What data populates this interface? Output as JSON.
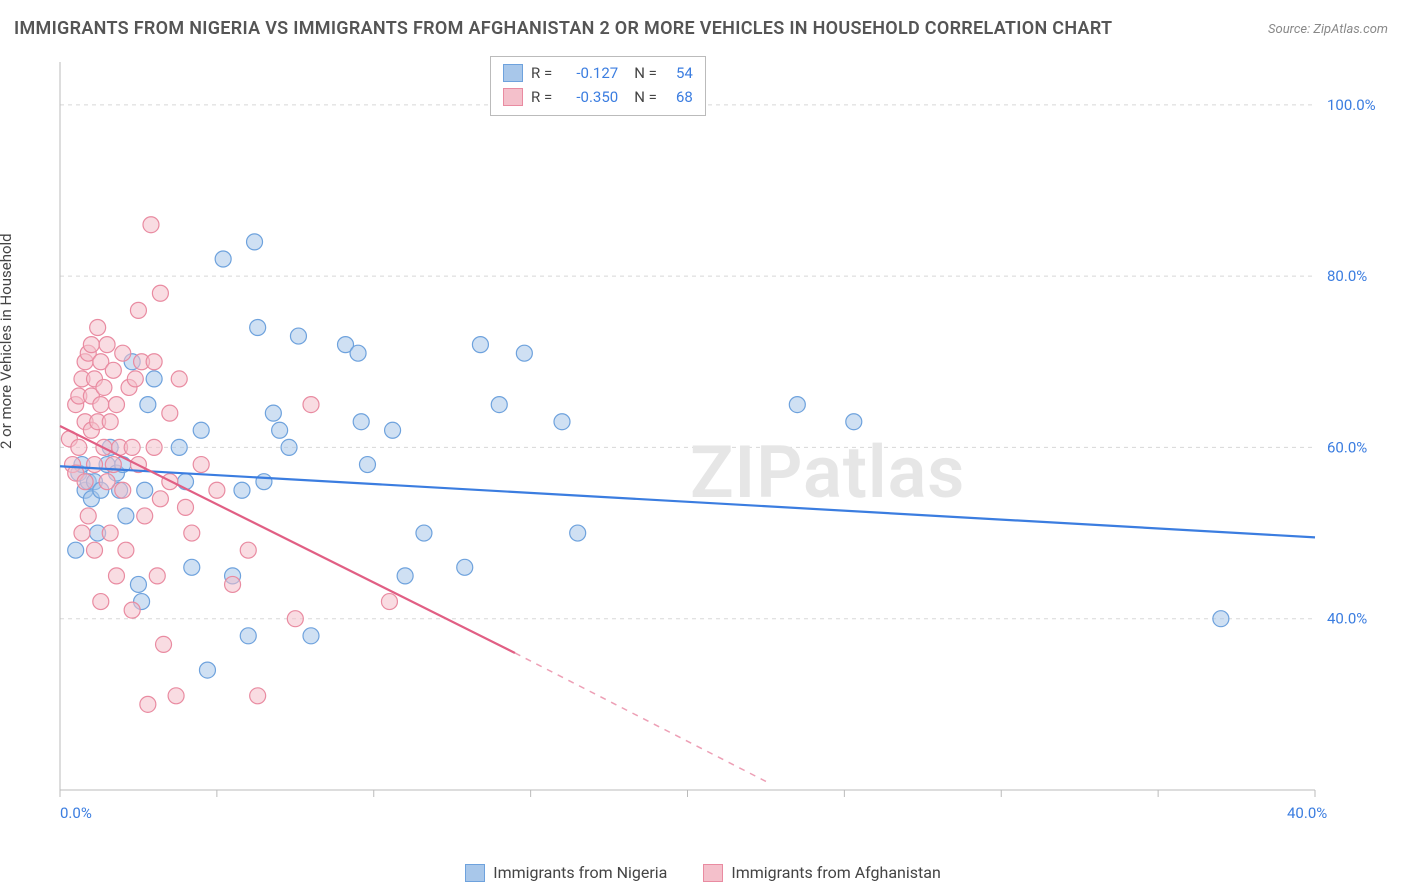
{
  "title": "IMMIGRANTS FROM NIGERIA VS IMMIGRANTS FROM AFGHANISTAN 2 OR MORE VEHICLES IN HOUSEHOLD CORRELATION CHART",
  "source": "Source: ZipAtlas.com",
  "watermark": "ZIPatlas",
  "y_axis_label": "2 or more Vehicles in Household",
  "chart": {
    "type": "scatter",
    "xlim": [
      0,
      40
    ],
    "ylim": [
      20,
      105
    ],
    "y_ticks": [
      40,
      60,
      80,
      100
    ],
    "y_tick_labels": [
      "40.0%",
      "60.0%",
      "80.0%",
      "100.0%"
    ],
    "x_ticks": [
      0,
      5,
      10,
      15,
      20,
      25,
      30,
      35,
      40
    ],
    "x_tick_labels": [
      "0.0%",
      "",
      "",
      "",
      "",
      "",
      "",
      "",
      "40.0%"
    ],
    "grid_color": "#d8d8d8",
    "axis_color": "#bbbbbb",
    "background_color": "#ffffff",
    "marker_radius": 8,
    "marker_stroke_width": 1.2,
    "line_width": 2.2,
    "series": [
      {
        "name": "Immigrants from Nigeria",
        "fill": "#a8c7ea",
        "stroke": "#6ea2dd",
        "fill_opacity": 0.55,
        "line_color": "#3b7de0",
        "r_value": "-0.127",
        "n_value": "54",
        "trend": {
          "x1": 0,
          "y1": 57.8,
          "x2": 40,
          "y2": 49.5
        },
        "points": [
          [
            0.5,
            48
          ],
          [
            0.6,
            57
          ],
          [
            0.7,
            58
          ],
          [
            0.8,
            55
          ],
          [
            0.9,
            56
          ],
          [
            1.0,
            54
          ],
          [
            1.1,
            56
          ],
          [
            1.2,
            50
          ],
          [
            1.3,
            55
          ],
          [
            1.5,
            58
          ],
          [
            1.6,
            60
          ],
          [
            1.8,
            57
          ],
          [
            1.9,
            55
          ],
          [
            2.0,
            58
          ],
          [
            2.1,
            52
          ],
          [
            2.3,
            70
          ],
          [
            2.5,
            44
          ],
          [
            2.6,
            42
          ],
          [
            2.7,
            55
          ],
          [
            2.8,
            65
          ],
          [
            3.0,
            68
          ],
          [
            3.8,
            60
          ],
          [
            4.0,
            56
          ],
          [
            4.2,
            46
          ],
          [
            4.5,
            62
          ],
          [
            4.7,
            34
          ],
          [
            5.2,
            82
          ],
          [
            5.5,
            45
          ],
          [
            5.8,
            55
          ],
          [
            6.0,
            38
          ],
          [
            6.2,
            84
          ],
          [
            6.3,
            74
          ],
          [
            6.5,
            56
          ],
          [
            6.8,
            64
          ],
          [
            7.0,
            62
          ],
          [
            7.3,
            60
          ],
          [
            7.6,
            73
          ],
          [
            8.0,
            38
          ],
          [
            9.1,
            72
          ],
          [
            9.5,
            71
          ],
          [
            9.6,
            63
          ],
          [
            9.8,
            58
          ],
          [
            10.6,
            62
          ],
          [
            11.0,
            45
          ],
          [
            11.6,
            50
          ],
          [
            12.9,
            46
          ],
          [
            13.4,
            72
          ],
          [
            14.0,
            65
          ],
          [
            14.8,
            71
          ],
          [
            16.0,
            63
          ],
          [
            16.5,
            50
          ],
          [
            23.5,
            65
          ],
          [
            25.3,
            63
          ],
          [
            37.0,
            40
          ]
        ]
      },
      {
        "name": "Immigrants from Afghanistan",
        "fill": "#f4c0cb",
        "stroke": "#e98ba1",
        "fill_opacity": 0.55,
        "line_color": "#e15f84",
        "r_value": "-0.350",
        "n_value": "68",
        "trend_solid": {
          "x1": 0,
          "y1": 62.5,
          "x2": 14.5,
          "y2": 36
        },
        "trend_dash": {
          "x1": 14.5,
          "y1": 36,
          "x2": 22.5,
          "y2": 21
        },
        "points": [
          [
            0.3,
            61
          ],
          [
            0.4,
            58
          ],
          [
            0.5,
            65
          ],
          [
            0.5,
            57
          ],
          [
            0.6,
            66
          ],
          [
            0.6,
            60
          ],
          [
            0.7,
            68
          ],
          [
            0.7,
            50
          ],
          [
            0.8,
            70
          ],
          [
            0.8,
            63
          ],
          [
            0.8,
            56
          ],
          [
            0.9,
            71
          ],
          [
            0.9,
            52
          ],
          [
            1.0,
            66
          ],
          [
            1.0,
            62
          ],
          [
            1.0,
            72
          ],
          [
            1.1,
            68
          ],
          [
            1.1,
            58
          ],
          [
            1.1,
            48
          ],
          [
            1.2,
            74
          ],
          [
            1.2,
            63
          ],
          [
            1.3,
            65
          ],
          [
            1.3,
            70
          ],
          [
            1.3,
            42
          ],
          [
            1.4,
            60
          ],
          [
            1.4,
            67
          ],
          [
            1.5,
            72
          ],
          [
            1.5,
            56
          ],
          [
            1.6,
            63
          ],
          [
            1.6,
            50
          ],
          [
            1.7,
            69
          ],
          [
            1.7,
            58
          ],
          [
            1.8,
            65
          ],
          [
            1.8,
            45
          ],
          [
            1.9,
            60
          ],
          [
            2.0,
            71
          ],
          [
            2.0,
            55
          ],
          [
            2.1,
            48
          ],
          [
            2.2,
            67
          ],
          [
            2.3,
            60
          ],
          [
            2.3,
            41
          ],
          [
            2.4,
            68
          ],
          [
            2.5,
            58
          ],
          [
            2.5,
            76
          ],
          [
            2.6,
            70
          ],
          [
            2.7,
            52
          ],
          [
            2.8,
            30
          ],
          [
            2.9,
            86
          ],
          [
            3.0,
            60
          ],
          [
            3.0,
            70
          ],
          [
            3.1,
            45
          ],
          [
            3.2,
            78
          ],
          [
            3.2,
            54
          ],
          [
            3.3,
            37
          ],
          [
            3.5,
            64
          ],
          [
            3.5,
            56
          ],
          [
            3.7,
            31
          ],
          [
            3.8,
            68
          ],
          [
            4.0,
            53
          ],
          [
            4.2,
            50
          ],
          [
            4.5,
            58
          ],
          [
            5.0,
            55
          ],
          [
            5.5,
            44
          ],
          [
            6.0,
            48
          ],
          [
            6.3,
            31
          ],
          [
            7.5,
            40
          ],
          [
            8.0,
            65
          ],
          [
            10.5,
            42
          ]
        ]
      }
    ]
  },
  "legend": {
    "items": [
      {
        "label": "Immigrants from Nigeria",
        "fill": "#a8c7ea",
        "stroke": "#6ea2dd"
      },
      {
        "label": "Immigrants from Afghanistan",
        "fill": "#f4c0cb",
        "stroke": "#e98ba1"
      }
    ]
  }
}
